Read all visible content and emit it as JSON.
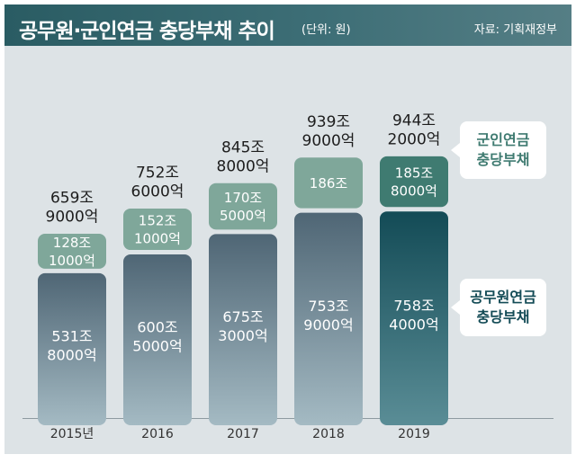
{
  "header": {
    "title": "공무원·군인연금 충당부채 추이",
    "unit": "(단위: 원)",
    "source": "자료: 기획재정부"
  },
  "colors": {
    "military": "#7fa79a",
    "military_highlight": "#3f7b71",
    "civil_top": "#4f6675",
    "civil_bottom": "#a4bac3",
    "civil_highlight_top": "#134b56",
    "civil_highlight_bottom": "#5a8d96"
  },
  "chart_data": {
    "type": "bar",
    "stacked": true,
    "categories": [
      "2015년",
      "2016",
      "2017",
      "2018",
      "2019"
    ],
    "series": [
      {
        "name": "공무원연금 충당부채",
        "values": [
          5318000,
          6005000,
          6753000,
          7539000,
          7584000
        ],
        "labels": [
          [
            "531조",
            "8000억"
          ],
          [
            "600조",
            "5000억"
          ],
          [
            "675조",
            "3000억"
          ],
          [
            "753조",
            "9000억"
          ],
          [
            "758조",
            "4000억"
          ]
        ]
      },
      {
        "name": "군인연금 충당부채",
        "values": [
          1281000,
          1521000,
          1705000,
          1860000,
          1858000
        ],
        "labels": [
          [
            "128조",
            "1000억"
          ],
          [
            "152조",
            "1000억"
          ],
          [
            "170조",
            "5000억"
          ],
          [
            "186조"
          ],
          [
            "185조",
            "8000억"
          ]
        ]
      }
    ],
    "totals": {
      "values": [
        6599000,
        7526000,
        8458000,
        9399000,
        9442000
      ],
      "labels": [
        [
          "659조",
          "9000억"
        ],
        [
          "752조",
          "6000억"
        ],
        [
          "845조",
          "8000억"
        ],
        [
          "939조",
          "9000억"
        ],
        [
          "944조",
          "2000억"
        ]
      ]
    },
    "value_unit": "억 원",
    "legend": [
      {
        "series": 1,
        "lines": [
          "군인연금",
          "충당부채"
        ]
      },
      {
        "series": 0,
        "lines": [
          "공무원연금",
          "충당부채"
        ]
      }
    ],
    "legend_position": "right",
    "grid": false
  }
}
